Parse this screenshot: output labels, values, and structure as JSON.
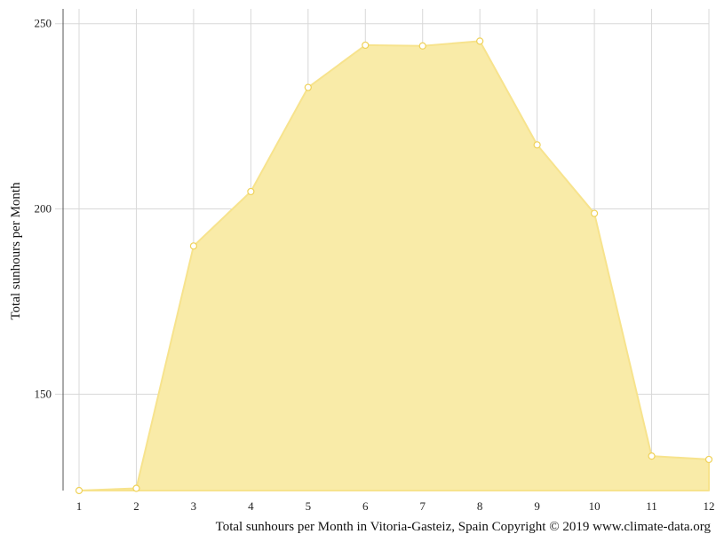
{
  "chart_data": {
    "type": "area",
    "x": [
      1,
      2,
      3,
      4,
      5,
      6,
      7,
      8,
      9,
      10,
      11,
      12
    ],
    "series": [
      {
        "values": [
          124,
          124.6,
          190,
          204.7,
          232.8,
          244.2,
          244,
          245.3,
          217.3,
          198.8,
          133.3,
          132.4
        ]
      }
    ],
    "ylabel": "Total sunhours per Month",
    "xlabel": "",
    "ylim": [
      124,
      254
    ],
    "xlim": [
      1,
      12
    ],
    "y_ticks": [
      150,
      200,
      250
    ],
    "x_ticks": [
      1,
      2,
      3,
      4,
      5,
      6,
      7,
      8,
      9,
      10,
      11,
      12
    ],
    "grid": true,
    "legend": "none",
    "caption": "Total sunhours per Month in Vitoria-Gasteiz, Spain Copyright © 2019 www.climate-data.org",
    "colors": {
      "fill": "#f9eba8",
      "stroke": "#f7e38d",
      "point": "#efd25a",
      "grid": "#d8d8d8",
      "axis": "#555555"
    }
  }
}
